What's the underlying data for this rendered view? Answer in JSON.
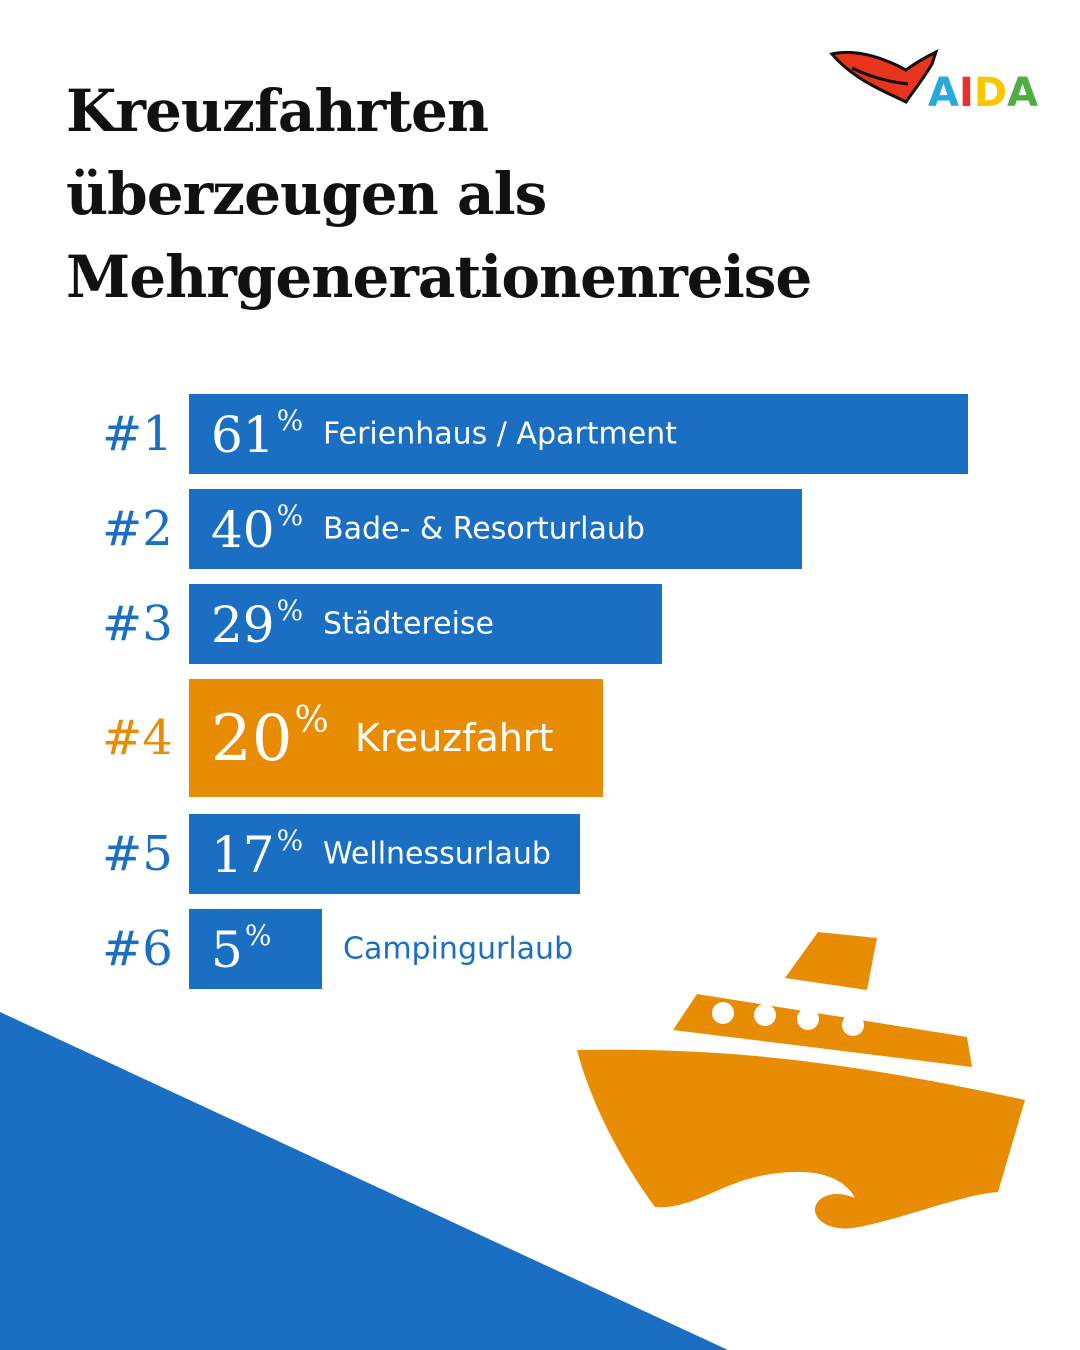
{
  "title_lines": [
    "Kreuzfahrten",
    "überzeugen als",
    "Mehrgenerationenreise"
  ],
  "logo": {
    "text": "AIDA",
    "letter_colors": [
      "#29a8e0",
      "#e8312a",
      "#f5c800",
      "#4caf3e"
    ],
    "lips_color": "#e8341c"
  },
  "colors": {
    "bar": "#1b6fc2",
    "highlight": "#e88c03",
    "background_shape": "#1b6fc2",
    "ship": "#e88c03"
  },
  "chart_data": {
    "type": "bar",
    "orientation": "horizontal",
    "unit": "%",
    "highlight": "Kreuzfahrt",
    "items": [
      {
        "rank": "#1",
        "value": 61,
        "label": "Ferienhaus / Apartment"
      },
      {
        "rank": "#2",
        "value": 40,
        "label": "Bade- & Resorturlaub"
      },
      {
        "rank": "#3",
        "value": 29,
        "label": "Städtereise"
      },
      {
        "rank": "#4",
        "value": 20,
        "label": "Kreuzfahrt"
      },
      {
        "rank": "#5",
        "value": 17,
        "label": "Wellnessurlaub"
      },
      {
        "rank": "#6",
        "value": 5,
        "label": "Campingurlaub"
      }
    ]
  }
}
